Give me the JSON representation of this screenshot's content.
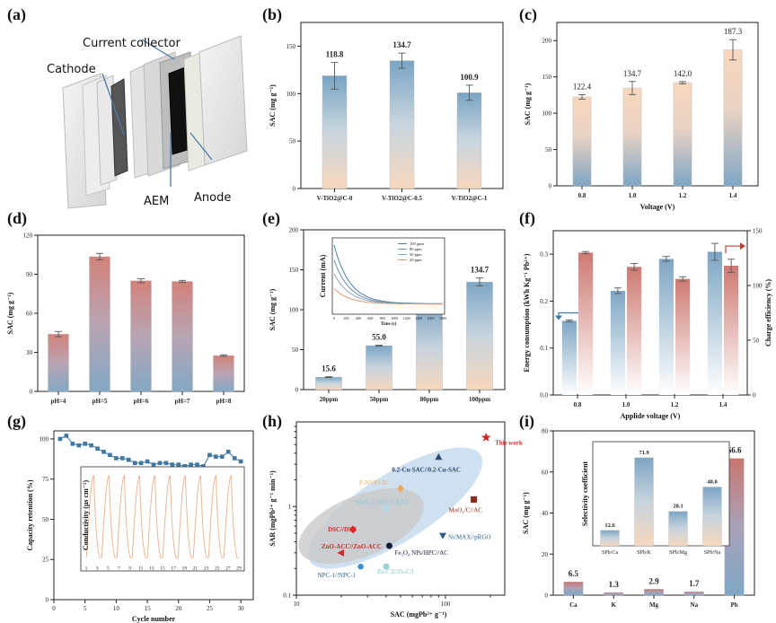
{
  "panel_labels": [
    "(a)",
    "(b)",
    "(c)",
    "(d)",
    "(e)",
    "(f)",
    "(g)",
    "(h)",
    "(i)"
  ],
  "schematic": {
    "labels": [
      "Current collector",
      "Cathode",
      "AEM",
      "Anode"
    ]
  },
  "colors": {
    "bar_top_blue": "#7ea6c4",
    "bar_peach": "#f6d8bf",
    "bar_red_top": "#cf7a72",
    "line_blue": "#3f78a3",
    "line_red": "#b5403a",
    "inset_orange": "#eab08a"
  },
  "chart_data": [
    {
      "panel": "(b)",
      "type": "bar",
      "categories": [
        "V-TiO2@C-0",
        "V-TiO2@C-0.5",
        "V-TiO2@C-1"
      ],
      "values": [
        118.8,
        134.7,
        100.9
      ],
      "errors": [
        14,
        8,
        8
      ],
      "value_labels": [
        "118.8",
        "134.7",
        "100.9"
      ],
      "ylabel": "SAC (mg g⁻¹)",
      "xlabel": "",
      "ylim": [
        0,
        175
      ],
      "yticks": [
        "0",
        "50",
        "100",
        "150"
      ]
    },
    {
      "panel": "(c)",
      "type": "bar",
      "categories": [
        "0.8",
        "1.0",
        "1.2",
        "1.4"
      ],
      "values": [
        122.4,
        134.7,
        142.0,
        187.3
      ],
      "errors": [
        3,
        9,
        1.5,
        14
      ],
      "value_labels": [
        "122.4",
        "134.7",
        "142.0",
        "187.3"
      ],
      "ylabel": "SAC (mg g⁻¹)",
      "xlabel": "Voltage (V)",
      "ylim": [
        0,
        225
      ],
      "yticks": [
        "0",
        "50",
        "100",
        "150",
        "200"
      ]
    },
    {
      "panel": "(d)",
      "type": "bar",
      "categories": [
        "pH=4",
        "pH=5",
        "pH=6",
        "pH=7",
        "pH=8"
      ],
      "values": [
        44,
        103.5,
        85,
        84.5,
        27.5
      ],
      "errors": [
        2,
        2.5,
        1.5,
        0.8,
        0.6
      ],
      "ylabel": "SAC (mg g⁻¹)",
      "xlabel": "",
      "ylim": [
        0,
        120
      ],
      "yticks": [
        "0",
        "30",
        "60",
        "90",
        "120"
      ]
    },
    {
      "panel": "(e)",
      "type": "bar",
      "categories": [
        "20ppm",
        "50ppm",
        "80ppm",
        "100ppm"
      ],
      "values": [
        15.6,
        55.0,
        104.5,
        134.7
      ],
      "errors": [
        0.5,
        0.5,
        0.8,
        5
      ],
      "value_labels": [
        "15.6",
        "55.0",
        "104.5",
        "134.7"
      ],
      "ylabel": "SAC (mg g⁻¹)",
      "xlabel": "",
      "ylim": [
        0,
        200
      ],
      "yticks": [
        "0",
        "50",
        "100",
        "150",
        "200"
      ],
      "inset": {
        "type": "line",
        "xlabel": "Time (s)",
        "ylabel": "Current (mA)",
        "xticks": [
          "0",
          "200",
          "400",
          "600",
          "800",
          "1000",
          "1200",
          "1400",
          "1600",
          "1800"
        ],
        "legend": [
          "100 ppm",
          "80 ppm",
          "50 ppm",
          "20 ppm"
        ]
      }
    },
    {
      "panel": "(f)",
      "type": "bar",
      "categories": [
        "0.8",
        "1.0",
        "1.2",
        "1.4"
      ],
      "xlabel": "Applide voltage (V)",
      "ylabel_left": "Energy consumption (kWh Kg⁻¹ Pb²⁺)",
      "ylabel_right": "Charge efficiency (%)",
      "series": [
        {
          "name": "Energy consumption",
          "axis": "left",
          "values": [
            0.158,
            0.222,
            0.29,
            0.305
          ],
          "errors": [
            0.002,
            0.006,
            0.005,
            0.018
          ]
        },
        {
          "name": "Charge efficiency",
          "axis": "right",
          "values": [
            130,
            117,
            106,
            118
          ],
          "errors": [
            1,
            3,
            2,
            6
          ]
        }
      ],
      "ylim_left": [
        0,
        0.35
      ],
      "yticks_left": [
        "0.0",
        "0.1",
        "0.2",
        "0.3"
      ],
      "ylim_right": [
        0,
        150
      ],
      "yticks_right": [
        "0",
        "50",
        "100",
        "150"
      ]
    },
    {
      "panel": "(g)",
      "type": "line",
      "xlabel": "Cycle number",
      "ylabel": "Capacity retention (%)",
      "x": [
        1,
        2,
        3,
        4,
        5,
        6,
        7,
        8,
        9,
        10,
        11,
        12,
        13,
        14,
        15,
        16,
        17,
        18,
        19,
        20,
        21,
        22,
        23,
        24,
        25,
        26,
        27,
        28,
        29,
        30
      ],
      "values": [
        100,
        102,
        97,
        96,
        97,
        96,
        94,
        92,
        90,
        88,
        88,
        87,
        85,
        85,
        86,
        84,
        85,
        85,
        84,
        84,
        83,
        84,
        84,
        83,
        90,
        89,
        89,
        92,
        88,
        86
      ],
      "xlim": [
        0,
        32
      ],
      "xticks": [
        "0",
        "5",
        "10",
        "15",
        "20",
        "25",
        "30"
      ],
      "ylim": [
        0,
        105
      ],
      "yticks": [
        "0",
        "25",
        "50",
        "75",
        "100"
      ],
      "inset": {
        "type": "line",
        "ylabel": "Conductivity (μs cm⁻¹)",
        "xticks": [
          "1",
          "3",
          "5",
          "7",
          "9",
          "11",
          "13",
          "15",
          "17",
          "19",
          "21",
          "23",
          "25",
          "27",
          "29"
        ]
      }
    },
    {
      "panel": "(h)",
      "type": "scatter",
      "xlabel": "SAC (mgPb²⁺ g⁻¹)",
      "ylabel": "SAR (mgPb²⁺ g⁻¹ min⁻¹)",
      "xscale": "log",
      "yscale": "log",
      "xticks": [
        "10",
        "100"
      ],
      "yticks": [
        "0.1",
        "1"
      ],
      "points": [
        {
          "label": "This work",
          "x": 187.3,
          "y": 6.0,
          "color": "#d62728",
          "marker": "star"
        },
        {
          "label": "0.2-Cu-SAC//0.2-Cu-SAC",
          "x": 90,
          "y": 3.6,
          "color": "#2f4a6e",
          "marker": "triangle"
        },
        {
          "label": "MoO₂/C//AC",
          "x": 155,
          "y": 1.2,
          "color": "#8b2a1f",
          "marker": "square"
        },
        {
          "label": "P-NVF//AC",
          "x": 50,
          "y": 1.6,
          "color": "#f2a657",
          "marker": "diamond"
        },
        {
          "label": "Ni/MAX//pRGO",
          "x": 96,
          "y": 0.47,
          "color": "#2b5f8a",
          "marker": "triangle-down"
        },
        {
          "label": "DSC//DSC",
          "x": 24,
          "y": 0.55,
          "color": "#d62728",
          "marker": "diamond"
        },
        {
          "label": "MnOₓ/CNDI//CNTD",
          "x": 40,
          "y": 0.95,
          "color": "#b5d8e6",
          "marker": "circle"
        },
        {
          "label": "ZnO-ACC//ZnO-ACC",
          "x": 20,
          "y": 0.3,
          "color": "#d62728",
          "marker": "triangle-left"
        },
        {
          "label": "Fe₃O₄ NPs/HPC//AC",
          "x": 42,
          "y": 0.36,
          "color": "#1a1a3a",
          "marker": "circle"
        },
        {
          "label": "NPC-1//NPC-1",
          "x": 27,
          "y": 0.21,
          "color": "#3d8fc8",
          "marker": "hexagon"
        },
        {
          "label": "Zn-C3//Zn-C3",
          "x": 40,
          "y": 0.21,
          "color": "#9ad3d3",
          "marker": "circle"
        }
      ]
    },
    {
      "panel": "(i)",
      "type": "bar",
      "categories": [
        "Ca",
        "K",
        "Mg",
        "Na",
        "Pb"
      ],
      "values": [
        6.5,
        1.3,
        2.9,
        1.7,
        66.6
      ],
      "value_labels": [
        "6.5",
        "1.3",
        "2.9",
        "1.7",
        "66.6"
      ],
      "ylabel": "SAC (mg g⁻¹)",
      "xlabel": "",
      "ylim": [
        0,
        80
      ],
      "yticks": [
        "0",
        "20",
        "40",
        "60",
        "80"
      ],
      "inset": {
        "type": "bar",
        "ylabel": "Selectivity coefficient",
        "categories": [
          "SPb/Ca",
          "SPb/K",
          "SPb/Mg",
          "SPb/Na"
        ],
        "values": [
          12.6,
          71.9,
          28.1,
          48.0
        ],
        "value_labels": [
          "12.6",
          "71.9",
          "28.1",
          "48.0"
        ],
        "ylim": [
          0,
          85
        ]
      }
    }
  ]
}
